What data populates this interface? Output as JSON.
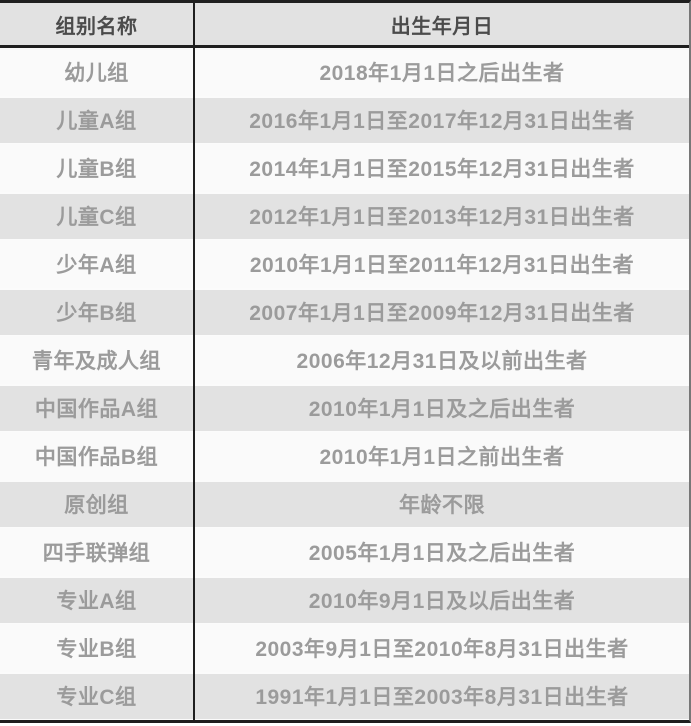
{
  "table": {
    "header": {
      "group": "组别名称",
      "birth": "出生年月日"
    },
    "rows": [
      {
        "group": "幼儿组",
        "birth": "2018年1月1日之后出生者"
      },
      {
        "group": "儿童A组",
        "birth": "2016年1月1日至2017年12月31日出生者"
      },
      {
        "group": "儿童B组",
        "birth": "2014年1月1日至2015年12月31日出生者"
      },
      {
        "group": "儿童C组",
        "birth": "2012年1月1日至2013年12月31日出生者"
      },
      {
        "group": "少年A组",
        "birth": "2010年1月1日至2011年12月31日出生者"
      },
      {
        "group": "少年B组",
        "birth": "2007年1月1日至2009年12月31日出生者"
      },
      {
        "group": "青年及成人组",
        "birth": "2006年12月31日及以前出生者"
      },
      {
        "group": "中国作品A组",
        "birth": "2010年1月1日及之后出生者"
      },
      {
        "group": "中国作品B组",
        "birth": "2010年1月1日之前出生者"
      },
      {
        "group": "原创组",
        "birth": "年龄不限"
      },
      {
        "group": "四手联弹组",
        "birth": "2005年1月1日及之后出生者"
      },
      {
        "group": "专业A组",
        "birth": "2010年9月1日及以后出生者"
      },
      {
        "group": "专业B组",
        "birth": "2003年9月1日至2010年8月31日出生者"
      },
      {
        "group": "专业C组",
        "birth": "1991年1月1日至2003年8月31日出生者"
      }
    ],
    "colors": {
      "stripe_gray": "#e2e2e2",
      "stripe_white": "#fafafa",
      "border_black": "#1f1f1f",
      "header_text": "#4b4b4b",
      "cell_text": "#9b9b9b"
    }
  }
}
